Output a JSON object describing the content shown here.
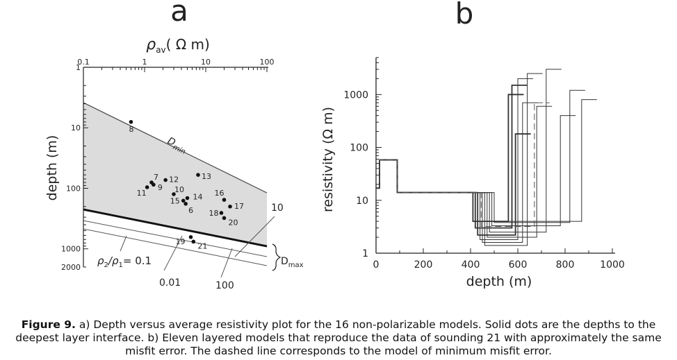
{
  "caption": {
    "label": "Figure 9.",
    "text": "a) Depth versus average resistivity plot for the 16 non-polarizable models. Solid dots are the depths to the deepest layer interface. b) Eleven layered models that reproduce the data of sounding 21 with approximately the same misfit error. The dashed line corresponds to the model of minimum misfit error."
  },
  "chart_data": [
    {
      "type": "scatter",
      "panel": "a",
      "xlabel_symbol": "ρ",
      "xlabel_sub": "av",
      "xlabel_unit": "( Ω m)",
      "ylabel": "depth  (m)",
      "x_scale": "log",
      "xlim": [
        0.1,
        100
      ],
      "y_scale": "log",
      "ylim": [
        1,
        2000
      ],
      "y_inverted": true,
      "x_tick_labels": [
        "0.1",
        "1",
        "10",
        "100"
      ],
      "y_tick_labels": [
        "1",
        "10",
        "100",
        "1000",
        "2000"
      ],
      "points": [
        {
          "label": "8",
          "x": 0.6,
          "y": 8
        },
        {
          "label": "13",
          "x": 7.5,
          "y": 60
        },
        {
          "label": "7",
          "x": 1.3,
          "y": 80
        },
        {
          "label": "9",
          "x": 1.4,
          "y": 87
        },
        {
          "label": "11",
          "x": 1.1,
          "y": 96
        },
        {
          "label": "12",
          "x": 2.2,
          "y": 73
        },
        {
          "label": "10",
          "x": 3.0,
          "y": 125
        },
        {
          "label": "14",
          "x": 5.0,
          "y": 145
        },
        {
          "label": "15",
          "x": 4.3,
          "y": 160
        },
        {
          "label": "6",
          "x": 4.7,
          "y": 180
        },
        {
          "label": "16",
          "x": 20,
          "y": 155
        },
        {
          "label": "17",
          "x": 25,
          "y": 200
        },
        {
          "label": "18",
          "x": 18,
          "y": 255
        },
        {
          "label": "20",
          "x": 20,
          "y": 310
        },
        {
          "label": "19",
          "x": 5.7,
          "y": 640
        },
        {
          "label": "21",
          "x": 6.3,
          "y": 760
        }
      ],
      "annotations": {
        "dmin_label": "D",
        "dmin_sub": "min",
        "dmax_label": "D",
        "dmax_sub": "max",
        "ratio_rho1": "ρ",
        "ratio_sub1": "2",
        "ratio_rho2": "/ρ",
        "ratio_sub2": "1",
        "ratio_value": "= 0.1",
        "line_labels": [
          "10",
          "0.01",
          "100"
        ]
      }
    },
    {
      "type": "line",
      "panel": "b",
      "xlabel": "depth  (m)",
      "ylabel": "resistivity  (Ω m)",
      "xlim": [
        0,
        1000
      ],
      "y_scale": "log",
      "ylim": [
        1,
        5000
      ],
      "x_tick_labels": [
        "0",
        "200",
        "400",
        "600",
        "800",
        "1000"
      ],
      "y_tick_labels": [
        "1",
        "10",
        "100",
        "1000"
      ],
      "common_layers": [
        {
          "from": 0,
          "to": 15,
          "rho": 17
        },
        {
          "from": 15,
          "to": 90,
          "rho": 58
        },
        {
          "from": 90,
          "to": 400,
          "rho": 14
        }
      ],
      "models": [
        {
          "conductive_top": 410,
          "rho2": 4.0,
          "basement_top": 560,
          "rho3": 1000
        },
        {
          "conductive_top": 420,
          "rho2": 3.0,
          "basement_top": 575,
          "rho3": 1500
        },
        {
          "conductive_top": 430,
          "rho2": 2.2,
          "basement_top": 590,
          "rho3": 180
        },
        {
          "conductive_top": 440,
          "rho2": 1.8,
          "basement_top": 600,
          "rho3": 2000
        },
        {
          "conductive_top": 450,
          "rho2": 1.6,
          "basement_top": 620,
          "rho3": 700
        },
        {
          "conductive_top": 460,
          "rho2": 1.4,
          "basement_top": 640,
          "rho3": 2500
        },
        {
          "conductive_top": 470,
          "rho2": 2.0,
          "basement_top": 680,
          "rho3": 600
        },
        {
          "conductive_top": 480,
          "rho2": 2.5,
          "basement_top": 720,
          "rho3": 3000
        },
        {
          "conductive_top": 490,
          "rho2": 3.3,
          "basement_top": 780,
          "rho3": 400
        },
        {
          "conductive_top": 500,
          "rho2": 3.8,
          "basement_top": 820,
          "rho3": 1200
        },
        {
          "conductive_top": 410,
          "rho2": 4.0,
          "basement_top": 870,
          "rho3": 800
        }
      ],
      "min_misfit_model": {
        "conductive_top": 445,
        "rho2": 3.2,
        "basement_top": 670,
        "rho3": 700,
        "style": "dashed"
      }
    }
  ],
  "panel_labels": {
    "a": "a",
    "b": "b"
  }
}
